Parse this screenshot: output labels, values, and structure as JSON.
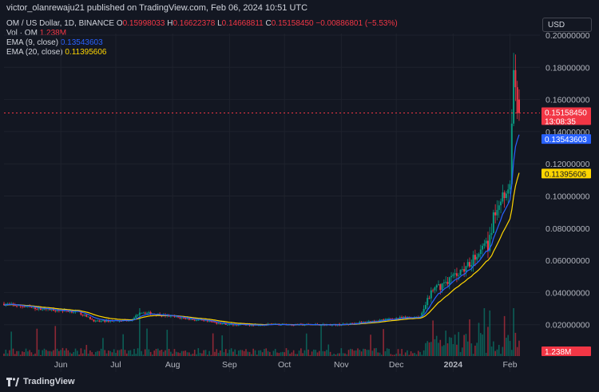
{
  "publisher_line": "victor_olanrewaju21 published on TradingView.com, Feb 06, 2024 10:51 UTC",
  "ohlc": {
    "symbol": "OM / US Dollar, 1D, BINANCE",
    "o_label": "O",
    "o": "0.15998033",
    "h_label": "H",
    "h": "0.16622378",
    "l_label": "L",
    "l": "0.14668811",
    "c_label": "C",
    "c": "0.15158450",
    "change": "−0.00886801 (−5.53%)"
  },
  "volume": {
    "label": "Vol · OM",
    "value": "1.238M"
  },
  "ema9": {
    "label": "EMA (9, close)",
    "value": "0.13543603"
  },
  "ema20": {
    "label": "EMA (20, close)",
    "value": "0.11395606"
  },
  "currency_button": "USD",
  "price_tags": {
    "last": "0.15158450",
    "countdown": "13:08:35",
    "ema9": "0.13543603",
    "ema20": "0.11395606",
    "volume": "1.238M"
  },
  "footer_brand": "TradingView",
  "colors": {
    "background": "#131722",
    "up": "#089981",
    "down": "#f23645",
    "ema9": "#2962ff",
    "ema20": "#ffd600",
    "grid": "#1e222d"
  },
  "chart_data": {
    "type": "candlestick",
    "y_axis_ticks": [
      "0.20000000",
      "0.18000000",
      "0.16000000",
      "0.14000000",
      "0.12000000",
      "0.10000000",
      "0.08000000",
      "0.06000000",
      "0.04000000",
      "0.02000000"
    ],
    "y_range": [
      0.0,
      0.2
    ],
    "x_axis_ticks": [
      "Jun",
      "Jul",
      "Aug",
      "Sep",
      "Oct",
      "Nov",
      "Dec",
      "2024",
      "Feb"
    ],
    "x_range": [
      "2023-05-01",
      "2024-02-06"
    ],
    "bar_interval": "1D",
    "current_price": 0.1515845,
    "ema9_last": 0.13543603,
    "ema20_last": 0.11395606,
    "price_path_approx": [
      {
        "date": "2023-05-01",
        "close": 0.033
      },
      {
        "date": "2023-05-20",
        "close": 0.03
      },
      {
        "date": "2023-06-10",
        "close": 0.028
      },
      {
        "date": "2023-06-20",
        "close": 0.022
      },
      {
        "date": "2023-07-10",
        "close": 0.023
      },
      {
        "date": "2023-07-14",
        "close": 0.028
      },
      {
        "date": "2023-08-01",
        "close": 0.025
      },
      {
        "date": "2023-09-01",
        "close": 0.02
      },
      {
        "date": "2023-10-01",
        "close": 0.02
      },
      {
        "date": "2023-11-01",
        "close": 0.02
      },
      {
        "date": "2023-12-01",
        "close": 0.024
      },
      {
        "date": "2023-12-14",
        "close": 0.025
      },
      {
        "date": "2023-12-20",
        "close": 0.04
      },
      {
        "date": "2024-01-01",
        "close": 0.05
      },
      {
        "date": "2024-01-20",
        "close": 0.07
      },
      {
        "date": "2024-01-25",
        "close": 0.095
      },
      {
        "date": "2024-02-01",
        "close": 0.11
      },
      {
        "date": "2024-02-03",
        "close": 0.17
      },
      {
        "date": "2024-02-06",
        "close": 0.152
      }
    ],
    "grid": true
  }
}
